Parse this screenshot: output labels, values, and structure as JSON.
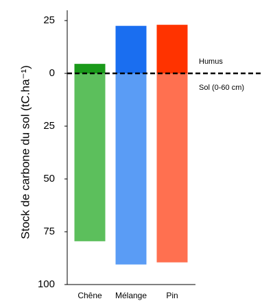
{
  "chart_data": {
    "type": "bar",
    "ylabel": "Stock de carbone du sol (tC.ha⁻¹)",
    "categories": [
      "Chêne",
      "Mélange",
      "Pin"
    ],
    "series": [
      {
        "name": "Humus",
        "colors": [
          "#1a9a1a",
          "#1a6ef0",
          "#ff3300"
        ],
        "values": [
          4.5,
          22.5,
          23
        ]
      },
      {
        "name": "Sol (0-60 cm)",
        "colors": [
          "#5cbf5c",
          "#5a9cf5",
          "#ff7050"
        ],
        "values": [
          -79.5,
          -90.5,
          -89.5
        ]
      }
    ],
    "ylim": [
      -100,
      25
    ],
    "yticks": [
      25,
      0,
      {
        "value": -25,
        "label": "25"
      },
      {
        "value": -50,
        "label": "50"
      },
      {
        "value": -75,
        "label": "75"
      },
      {
        "value": -100,
        "label": "100"
      }
    ],
    "zero_line": "dashed"
  }
}
